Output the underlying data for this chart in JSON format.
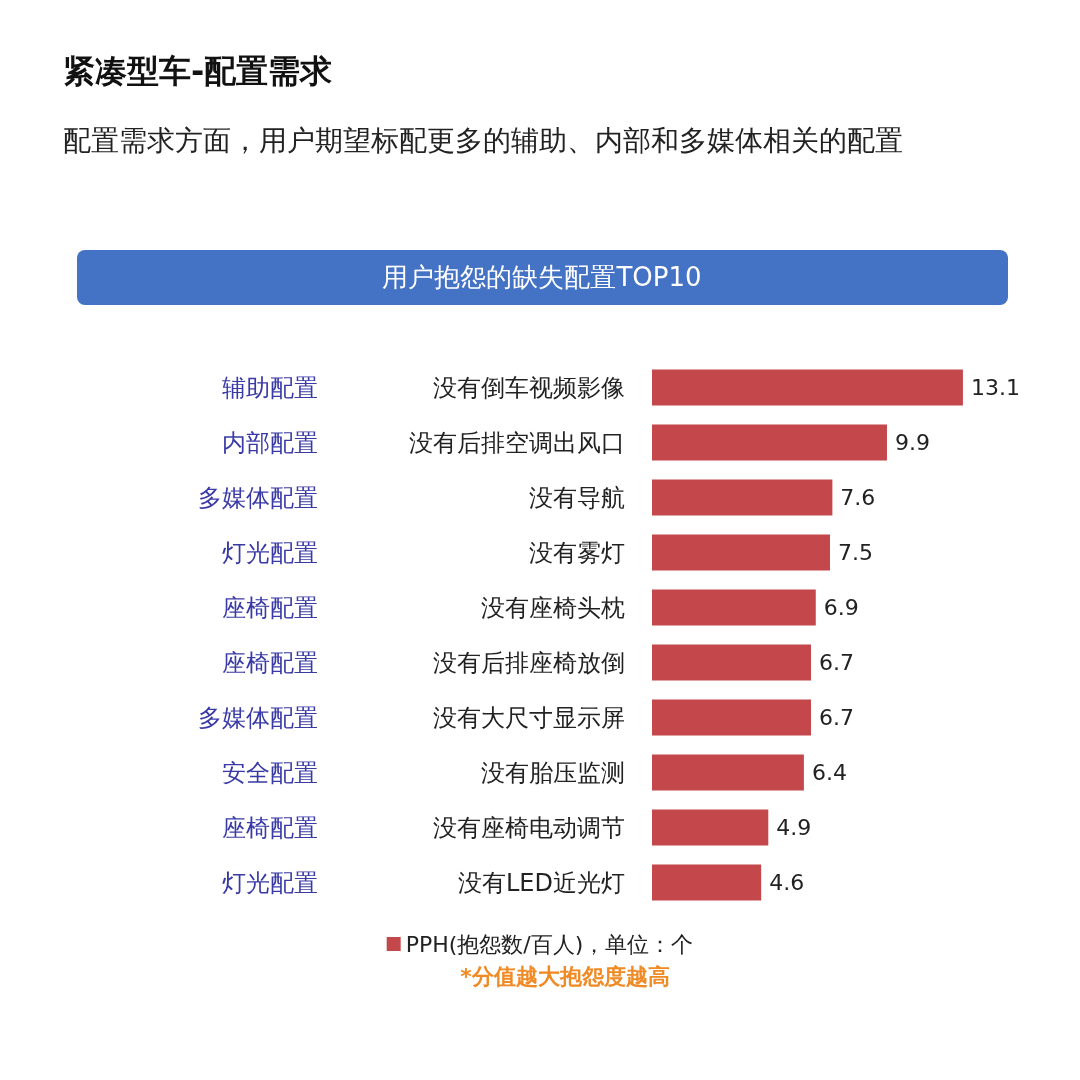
{
  "chart_data": {
    "type": "bar",
    "orientation": "horizontal",
    "title": "紧凑型车-配置需求",
    "subtitle": "配置需求方面，用户期望标配更多的辅助、内部和多媒体相关的配置",
    "categories": [
      "没有倒车视频影像",
      "没有后排空调出风口",
      "没有导航",
      "没有雾灯",
      "没有座椅头枕",
      "没有后排座椅放倒",
      "没有大尺寸显示屏",
      "没有胎压监测",
      "没有座椅电动调节",
      "没有LED近光灯"
    ],
    "y2_categories": [
      "辅助配置",
      "内部配置",
      "多媒体配置",
      "灯光配置",
      "座椅配置",
      "座椅配置",
      "多媒体配置",
      "安全配置",
      "座椅配置",
      "灯光配置"
    ],
    "series": [
      {
        "name": "PPH(抱怨数/百人)，单位：个",
        "color": "#c4474b",
        "values": [
          13.1,
          9.9,
          7.6,
          7.5,
          6.9,
          6.7,
          6.7,
          6.4,
          4.9,
          4.6
        ]
      }
    ],
    "data_labels": true,
    "legend": "bottom",
    "annotations": [
      "用户抱怨的缺失配置TOP10",
      "*分值越大抱怨度越高"
    ]
  }
}
